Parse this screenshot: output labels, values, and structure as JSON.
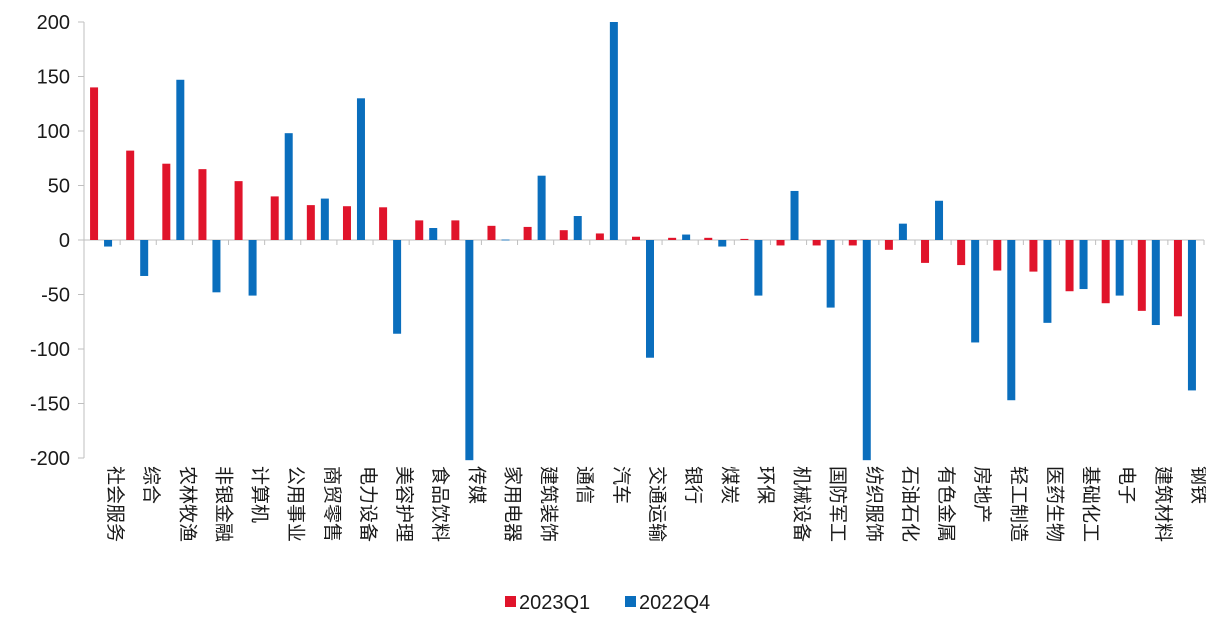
{
  "chart_data": {
    "type": "bar",
    "title": "",
    "xlabel": "",
    "ylabel": "",
    "ylim": [
      -200,
      200
    ],
    "yticks": [
      200,
      150,
      100,
      50,
      0,
      -50,
      -100,
      -150,
      -200
    ],
    "grid": false,
    "legend_position": "bottom",
    "categories": [
      "社会服务",
      "综合",
      "农林牧渔",
      "非银金融",
      "计算机",
      "公用事业",
      "商贸零售",
      "电力设备",
      "美容护理",
      "食品饮料",
      "传媒",
      "家用电器",
      "建筑装饰",
      "通信",
      "汽车",
      "交通运输",
      "银行",
      "煤炭",
      "环保",
      "机械设备",
      "国防军工",
      "纺织服饰",
      "石油石化",
      "有色金属",
      "房地产",
      "轻工制造",
      "医药生物",
      "基础化工",
      "电子",
      "建筑材料",
      "钢铁"
    ],
    "series": [
      {
        "name": "2023Q1",
        "color": "#e0142b",
        "values": [
          140,
          82,
          70,
          65,
          54,
          40,
          32,
          31,
          30,
          18,
          18,
          13,
          12,
          9,
          6,
          3,
          2,
          2,
          1,
          -5,
          -5,
          -5,
          -9,
          -21,
          -23,
          -28,
          -29,
          -47,
          -58,
          -65,
          -70
        ]
      },
      {
        "name": "2022Q4",
        "color": "#0a6ebd",
        "values": [
          -6,
          -33,
          147,
          -48,
          -51,
          98,
          38,
          130,
          -86,
          11,
          -202,
          0,
          59,
          22,
          200,
          -108,
          5,
          -6,
          -51,
          45,
          -62,
          -202,
          15,
          36,
          -94,
          -147,
          -76,
          -45,
          -51,
          -78,
          -138
        ]
      }
    ]
  }
}
